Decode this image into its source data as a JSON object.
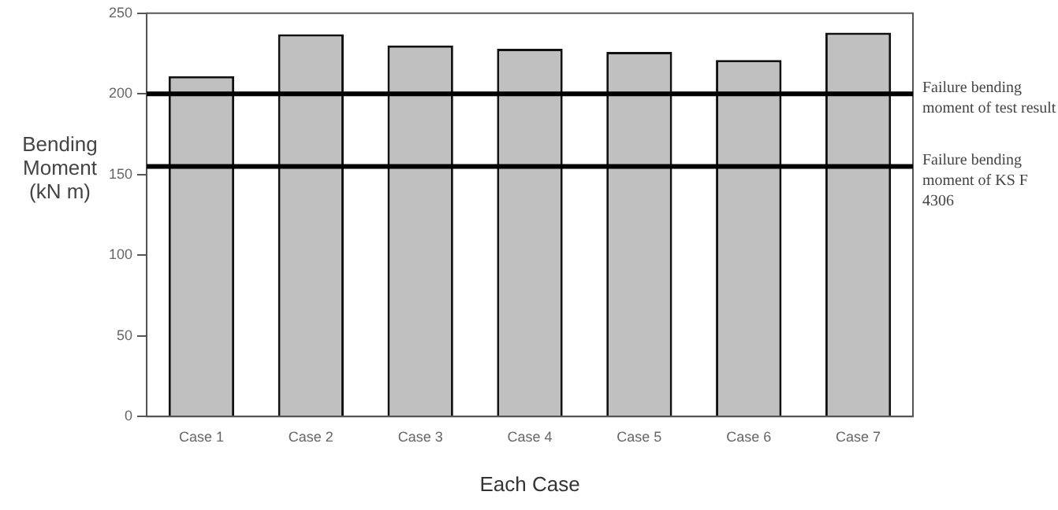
{
  "chart_data": {
    "type": "bar",
    "xlabel": "Each Case",
    "ylabel": "Bending Moment (kN m)",
    "categories": [
      "Case 1",
      "Case 2",
      "Case 3",
      "Case 4",
      "Case 5",
      "Case 6",
      "Case 7"
    ],
    "values": [
      211,
      237,
      230,
      228,
      226,
      221,
      238
    ],
    "color": "#c0c0c0",
    "ylim": [
      0,
      250
    ],
    "yticks": [
      0,
      50,
      100,
      150,
      200,
      250
    ],
    "grid": false,
    "legend": false,
    "ref_lines": [
      {
        "axis": "y",
        "value": 200,
        "label": "Failure bending moment of test result",
        "color": "#000000"
      },
      {
        "axis": "y",
        "value": 155,
        "label": "Failure bending moment of KS F 4306",
        "color": "#000000"
      }
    ]
  }
}
